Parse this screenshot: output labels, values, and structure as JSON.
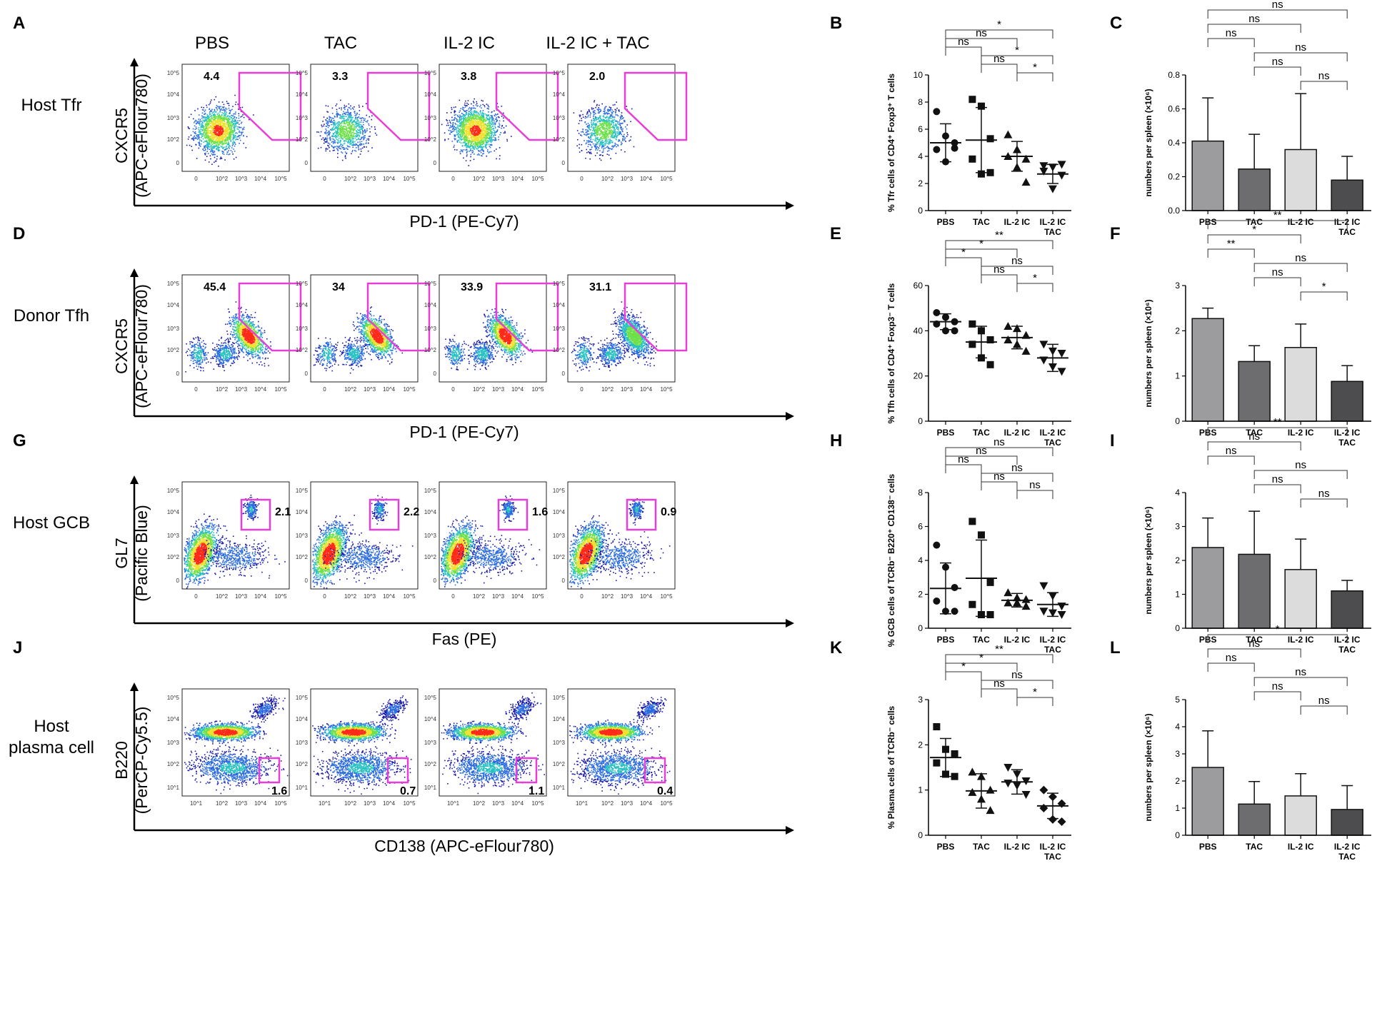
{
  "chart_data": {
    "type": "figure",
    "panel_letters": [
      "A",
      "B",
      "C",
      "D",
      "E",
      "F",
      "G",
      "H",
      "I",
      "J",
      "K",
      "L"
    ],
    "facs_columns": [
      "PBS",
      "TAC",
      "IL-2  IC",
      "IL-2 IC + TAC"
    ],
    "categories": [
      "PBS",
      "TAC",
      "IL-2 IC",
      "IL-2 IC",
      "TAC"
    ],
    "flow_ticks": [
      "0",
      "10^2",
      "10^3",
      "10^4",
      "10^5",
      "10^1",
      "10^3"
    ],
    "rows": [
      {
        "row_label": "Host Tfr",
        "facs": {
          "panel": "A",
          "ylabel": "CXCR5",
          "ylabel2": "(APC-eFlour780)",
          "xlabel": "PD-1 (PE-Cy7)",
          "gate_values": [
            "4.4",
            "3.3",
            "3.8",
            "2.0"
          ]
        },
        "dot": {
          "panel": "B",
          "ylabel": "% Tfr cells of CD4⁺ Foxp3⁺ T cells",
          "ylim": [
            0,
            10
          ],
          "yticks": [
            "0",
            "2",
            "4",
            "6",
            "8",
            "10"
          ],
          "groups": [
            {
              "mean": 5.0,
              "sd": 1.4,
              "marker": "circle",
              "points": [
                7.3,
                5.5,
                5.0,
                4.5,
                3.6,
                4.6
              ]
            },
            {
              "mean": 5.2,
              "sd": 2.4,
              "marker": "square",
              "points": [
                8.2,
                7.7,
                5.3,
                3.8,
                2.7,
                2.8
              ]
            },
            {
              "mean": 4.0,
              "sd": 1.1,
              "marker": "triangle-up",
              "points": [
                5.6,
                4.5,
                3.8,
                4.0,
                3.2,
                2.1
              ]
            },
            {
              "mean": 2.7,
              "sd": 0.7,
              "marker": "triangle-down",
              "points": [
                3.3,
                3.2,
                2.6,
                2.9,
                1.6,
                3.4
              ]
            }
          ],
          "comparisons": [
            {
              "from": 0,
              "to": 1,
              "label": "ns"
            },
            {
              "from": 0,
              "to": 2,
              "label": "ns"
            },
            {
              "from": 0,
              "to": 3,
              "label": "*"
            },
            {
              "from": 1,
              "to": 2,
              "label": "ns"
            },
            {
              "from": 1,
              "to": 3,
              "label": "*"
            },
            {
              "from": 2,
              "to": 3,
              "label": "*"
            }
          ]
        },
        "bar": {
          "panel": "C",
          "ylabel": "numbers per spleen (×10⁶)",
          "ylim": [
            0,
            0.8
          ],
          "yticks": [
            "0.0",
            "0.2",
            "0.4",
            "0.6",
            "0.8"
          ],
          "values": [
            0.41,
            0.245,
            0.36,
            0.18
          ],
          "errors": [
            0.255,
            0.205,
            0.33,
            0.14
          ],
          "comparisons": [
            {
              "from": 0,
              "to": 1,
              "label": "ns"
            },
            {
              "from": 0,
              "to": 2,
              "label": "ns"
            },
            {
              "from": 0,
              "to": 3,
              "label": "ns"
            },
            {
              "from": 1,
              "to": 2,
              "label": "ns"
            },
            {
              "from": 1,
              "to": 3,
              "label": "ns"
            },
            {
              "from": 2,
              "to": 3,
              "label": "ns"
            }
          ]
        }
      },
      {
        "row_label": "Donor Tfh",
        "facs": {
          "panel": "D",
          "ylabel": "CXCR5",
          "ylabel2": "(APC-eFlour780)",
          "xlabel": "PD-1 (PE-Cy7)",
          "gate_values": [
            "45.4",
            "34",
            "33.9",
            "31.1"
          ]
        },
        "dot": {
          "panel": "E",
          "ylabel": "% Tfh cells of CD4⁺ Foxp3⁻ T cells",
          "ylim": [
            0,
            60
          ],
          "yticks": [
            "0",
            "20",
            "40",
            "60"
          ],
          "groups": [
            {
              "mean": 44,
              "sd": 3.5,
              "marker": "circle",
              "points": [
                48,
                46,
                44,
                43,
                40,
                40
              ]
            },
            {
              "mean": 35,
              "sd": 7,
              "marker": "square",
              "points": [
                43,
                40,
                36,
                34,
                28,
                25
              ]
            },
            {
              "mean": 37,
              "sd": 5,
              "marker": "triangle-up",
              "points": [
                42,
                41,
                38,
                36,
                34,
                31
              ]
            },
            {
              "mean": 28,
              "sd": 6,
              "marker": "triangle-down",
              "points": [
                34,
                31,
                30,
                27,
                24,
                22
              ]
            }
          ],
          "comparisons": [
            {
              "from": 0,
              "to": 1,
              "label": "*"
            },
            {
              "from": 0,
              "to": 2,
              "label": "*"
            },
            {
              "from": 0,
              "to": 3,
              "label": "**"
            },
            {
              "from": 1,
              "to": 2,
              "label": "ns"
            },
            {
              "from": 1,
              "to": 3,
              "label": "ns"
            },
            {
              "from": 2,
              "to": 3,
              "label": "*"
            }
          ]
        },
        "bar": {
          "panel": "F",
          "ylabel": "numbers per spleen (×10⁶)",
          "ylim": [
            0,
            3
          ],
          "yticks": [
            "0",
            "1",
            "2",
            "3"
          ],
          "values": [
            2.27,
            1.32,
            1.63,
            0.88
          ],
          "errors": [
            0.23,
            0.35,
            0.52,
            0.35
          ],
          "comparisons": [
            {
              "from": 0,
              "to": 1,
              "label": "**"
            },
            {
              "from": 0,
              "to": 2,
              "label": "*"
            },
            {
              "from": 0,
              "to": 3,
              "label": "**"
            },
            {
              "from": 1,
              "to": 2,
              "label": "ns"
            },
            {
              "from": 1,
              "to": 3,
              "label": "ns"
            },
            {
              "from": 2,
              "to": 3,
              "label": "*"
            }
          ]
        }
      },
      {
        "row_label": "Host GCB",
        "facs": {
          "panel": "G",
          "ylabel": "GL7",
          "ylabel2": "(Pacific Blue)",
          "xlabel": "Fas (PE)",
          "gate_values": [
            "2.1",
            "2.2",
            "1.6",
            "0.9"
          ]
        },
        "dot": {
          "panel": "H",
          "ylabel": "% GCB cells of TCRb⁻ B220⁺ CD138⁻ cells",
          "ylim": [
            0,
            8
          ],
          "yticks": [
            "0",
            "2",
            "4",
            "6",
            "8"
          ],
          "groups": [
            {
              "mean": 2.35,
              "sd": 1.5,
              "marker": "circle",
              "points": [
                4.9,
                3.6,
                2.4,
                1.6,
                1.0,
                1.0
              ]
            },
            {
              "mean": 2.95,
              "sd": 2.25,
              "marker": "square",
              "points": [
                6.3,
                5.5,
                2.7,
                1.4,
                0.8,
                0.8
              ]
            },
            {
              "mean": 1.65,
              "sd": 0.4,
              "marker": "triangle-up",
              "points": [
                2.1,
                1.8,
                1.7,
                1.5,
                1.5,
                1.3
              ]
            },
            {
              "mean": 1.4,
              "sd": 0.7,
              "marker": "triangle-down",
              "points": [
                2.5,
                1.9,
                1.3,
                1.0,
                0.9,
                0.8
              ]
            }
          ],
          "comparisons": [
            {
              "from": 0,
              "to": 1,
              "label": "ns"
            },
            {
              "from": 0,
              "to": 2,
              "label": "ns"
            },
            {
              "from": 0,
              "to": 3,
              "label": "ns"
            },
            {
              "from": 1,
              "to": 2,
              "label": "ns"
            },
            {
              "from": 1,
              "to": 3,
              "label": "ns"
            },
            {
              "from": 2,
              "to": 3,
              "label": "ns"
            }
          ]
        },
        "bar": {
          "panel": "I",
          "ylabel": "numbers per spleen (×10⁶)",
          "ylim": [
            0,
            4
          ],
          "yticks": [
            "0",
            "1",
            "2",
            "3",
            "4"
          ],
          "values": [
            2.38,
            2.18,
            1.73,
            1.1
          ],
          "errors": [
            0.87,
            1.27,
            0.9,
            0.31
          ],
          "comparisons": [
            {
              "from": 0,
              "to": 1,
              "label": "ns"
            },
            {
              "from": 0,
              "to": 2,
              "label": "ns"
            },
            {
              "from": 0,
              "to": 3,
              "label": "**"
            },
            {
              "from": 1,
              "to": 2,
              "label": "ns"
            },
            {
              "from": 1,
              "to": 3,
              "label": "ns"
            },
            {
              "from": 2,
              "to": 3,
              "label": "ns"
            }
          ]
        }
      },
      {
        "row_label": "Host",
        "row_label2": "plasma cell",
        "facs": {
          "panel": "J",
          "ylabel": "B220",
          "ylabel2": "(PerCP-Cy5.5)",
          "xlabel": "CD138 (APC-eFlour780)",
          "gate_values": [
            "1.6",
            "0.7",
            "1.1",
            "0.4"
          ]
        },
        "dot": {
          "panel": "K",
          "ylabel": "% Plasma cells of TCRb⁻ cells",
          "ylim": [
            0,
            3
          ],
          "yticks": [
            "0",
            "1",
            "2",
            "3"
          ],
          "groups": [
            {
              "mean": 1.72,
              "sd": 0.42,
              "marker": "square",
              "points": [
                2.4,
                1.9,
                1.8,
                1.6,
                1.35,
                1.3
              ]
            },
            {
              "mean": 0.98,
              "sd": 0.38,
              "marker": "triangle-up",
              "points": [
                1.4,
                1.3,
                1.0,
                0.95,
                0.8,
                0.55
              ]
            },
            {
              "mean": 1.18,
              "sd": 0.27,
              "marker": "triangle-down",
              "points": [
                1.5,
                1.35,
                1.2,
                1.15,
                1.1,
                0.9
              ]
            },
            {
              "mean": 0.65,
              "sd": 0.28,
              "marker": "diamond",
              "points": [
                1.0,
                0.85,
                0.7,
                0.6,
                0.35,
                0.3
              ]
            }
          ],
          "comparisons": [
            {
              "from": 0,
              "to": 1,
              "label": "*"
            },
            {
              "from": 0,
              "to": 2,
              "label": "*"
            },
            {
              "from": 0,
              "to": 3,
              "label": "**"
            },
            {
              "from": 1,
              "to": 2,
              "label": "ns"
            },
            {
              "from": 1,
              "to": 3,
              "label": "ns"
            },
            {
              "from": 2,
              "to": 3,
              "label": "*"
            }
          ]
        },
        "bar": {
          "panel": "L",
          "ylabel": "numbers per spleen (×10⁶)",
          "ylim": [
            0,
            5
          ],
          "yticks": [
            "0",
            "1",
            "2",
            "3",
            "4",
            "5"
          ],
          "values": [
            2.5,
            1.15,
            1.45,
            0.95
          ],
          "errors": [
            1.35,
            0.83,
            0.82,
            0.88
          ],
          "comparisons": [
            {
              "from": 0,
              "to": 1,
              "label": "ns"
            },
            {
              "from": 0,
              "to": 2,
              "label": "ns"
            },
            {
              "from": 0,
              "to": 3,
              "label": "*"
            },
            {
              "from": 1,
              "to": 2,
              "label": "ns"
            },
            {
              "from": 1,
              "to": 3,
              "label": "ns"
            },
            {
              "from": 2,
              "to": 3,
              "label": "ns"
            }
          ]
        }
      }
    ],
    "colors": {
      "gate": "#e83ed8",
      "bar_fills": [
        "#9c9c9e",
        "#6d6d6f",
        "#dcdcdc",
        "#4d4d4f"
      ],
      "density": [
        "#1a1aa8",
        "#2a6ae0",
        "#29c0c0",
        "#6ee04a",
        "#f0e030",
        "#ff2a1a"
      ]
    }
  }
}
